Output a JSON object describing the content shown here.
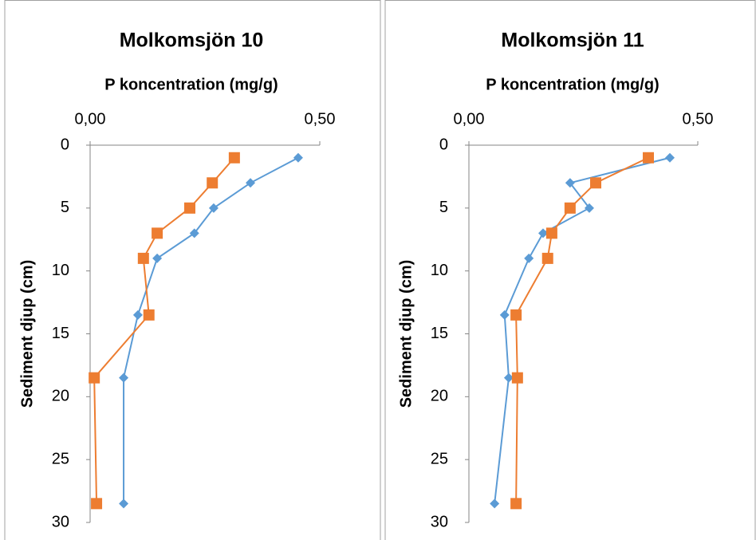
{
  "chart_data": [
    {
      "type": "line",
      "title": "Molkomsjön 10",
      "x_label": "P koncentration (mg/g)",
      "y_label": "Sediment djup (cm)",
      "y": [
        1,
        3,
        5,
        7,
        9,
        13.5,
        18.5,
        28.5
      ],
      "xlim": [
        0,
        0.5
      ],
      "xticks": [
        {
          "value": 0,
          "label": "0,00"
        },
        {
          "value": 0.5,
          "label": "0,50"
        }
      ],
      "ylim": [
        0,
        30
      ],
      "yticks": [
        0,
        5,
        10,
        15,
        20,
        25,
        30
      ],
      "y_inverted": true,
      "series": [
        {
          "color": "#5b9bd5",
          "marker": "diamond",
          "values": [
            0.453,
            0.349,
            0.269,
            0.227,
            0.146,
            0.104,
            0.073,
            0.073
          ]
        },
        {
          "color": "#ed7d31",
          "marker": "square",
          "values": [
            0.314,
            0.266,
            0.217,
            0.146,
            0.116,
            0.128,
            0.009,
            0.014
          ]
        }
      ]
    },
    {
      "type": "line",
      "title": "Molkomsjön 11",
      "x_label": "P koncentration (mg/g)",
      "y_label": "Sediment djup (cm)",
      "y": [
        1,
        3,
        5,
        7,
        9,
        13.5,
        18.5,
        28.5
      ],
      "xlim": [
        0,
        0.5
      ],
      "xticks": [
        {
          "value": 0,
          "label": "0,00"
        },
        {
          "value": 0.5,
          "label": "0,50"
        }
      ],
      "ylim": [
        0,
        30
      ],
      "yticks": [
        0,
        5,
        10,
        15,
        20,
        25,
        30
      ],
      "y_inverted": true,
      "series": [
        {
          "color": "#5b9bd5",
          "marker": "diamond",
          "values": [
            0.439,
            0.221,
            0.263,
            0.162,
            0.131,
            0.078,
            0.087,
            0.056
          ]
        },
        {
          "color": "#ed7d31",
          "marker": "square",
          "values": [
            0.392,
            0.277,
            0.221,
            0.181,
            0.172,
            0.103,
            0.106,
            0.103
          ]
        }
      ]
    }
  ]
}
